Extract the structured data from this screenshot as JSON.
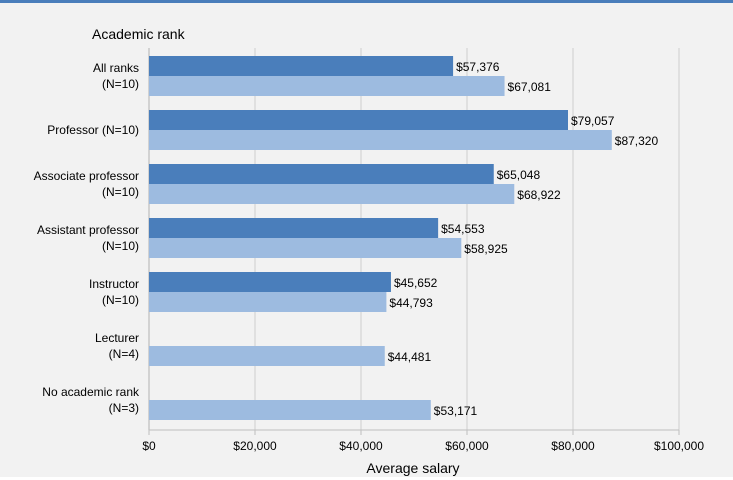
{
  "chart_data": {
    "type": "bar",
    "orientation": "horizontal",
    "y_axis_title": "Academic rank",
    "xlabel": "Average salary",
    "xlim": [
      0,
      100000
    ],
    "x_ticks": [
      0,
      20000,
      40000,
      60000,
      80000,
      100000
    ],
    "x_tick_labels": [
      "$0",
      "$20,000",
      "$40,000",
      "$60,000",
      "$80,000",
      "$100,000"
    ],
    "grid": "vertical",
    "legend": "none",
    "categories": [
      [
        "All ranks",
        "(N=10)"
      ],
      [
        "Professor (N=10)"
      ],
      [
        "Associate professor",
        "(N=10)"
      ],
      [
        "Assistant professor",
        "(N=10)"
      ],
      [
        "Instructor",
        "(N=10)"
      ],
      [
        "Lecturer",
        "(N=4)"
      ],
      [
        "No academic rank",
        "(N=3)"
      ]
    ],
    "series": [
      {
        "color": "#4a7ebb",
        "values": [
          57376,
          79057,
          65048,
          54553,
          45652,
          null,
          null
        ],
        "labels": [
          "$57,376",
          "$79,057",
          "$65,048",
          "$54,553",
          "$45,652",
          null,
          null
        ]
      },
      {
        "color": "#9dbbe0",
        "values": [
          67081,
          87320,
          68922,
          58925,
          44793,
          44481,
          53171
        ],
        "labels": [
          "$67,081",
          "$87,320",
          "$68,922",
          "$58,925",
          "$44,793",
          "$44,481",
          "$53,171"
        ]
      }
    ]
  }
}
